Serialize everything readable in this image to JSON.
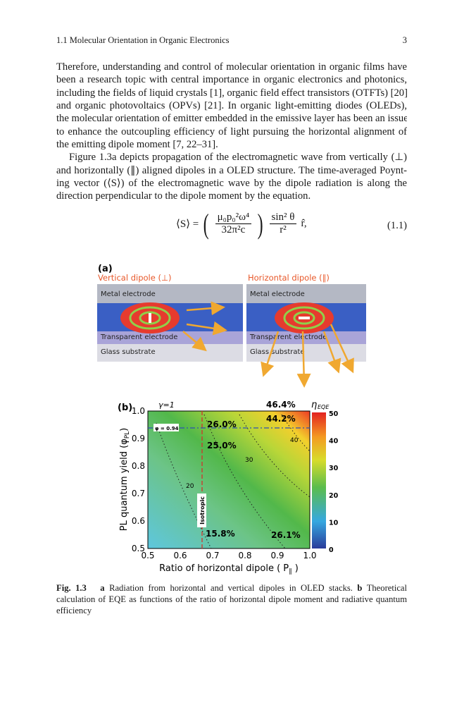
{
  "header": {
    "section": "1.1 Molecular Orientation in Organic Electronics",
    "page_number": "3"
  },
  "body": {
    "paragraphs": [
      {
        "lines": [
          "Therefore, understanding and control of molecular orientation in organic films have",
          "been a research topic with central importance in organic electronics and photonics,",
          "including the fields of liquid crystals [1], organic field effect transistors (OTFTs) [20],",
          "and organic photovoltaics (OPVs) [21]. In organic light-emitting diodes (OLEDs),",
          "the molecular orientation of emitter embedded in the emissive layer has been an issue",
          "to enhance the outcoupling efficiency of light pursuing the horizontal alignment of",
          "the emitting dipole moment [7, 22–31]."
        ]
      },
      {
        "lines": [
          "Figure 1.3a depicts propagation of the electromagnetic wave from vertically (⊥)",
          "and horizontally (∥) aligned dipoles in a OLED structure. The time-averaged Poynt-",
          "ing vector (⟨S⟩) of the electromagnetic wave by the dipole radiation is along the",
          "direction perpendicular to the dipole moment by the equation."
        ]
      }
    ]
  },
  "equation": {
    "lhs": "⟨S⟩ =",
    "numerator": "μ₀p₀²ω⁴",
    "denominator": "32π²c",
    "sin_num": "sin² θ",
    "sin_den": "r²",
    "unit": "r̂,",
    "number": "(1.1)"
  },
  "figure": {
    "panel_a": {
      "label": "(a)",
      "left_title": "Vertical dipole (⊥)",
      "right_title": "Horizontal dipole (∥)",
      "layers": [
        "Metal electrode",
        "Transparent electrode",
        "Glass substrate"
      ]
    },
    "panel_b": {
      "label": "(b)",
      "gamma": "γ=1",
      "colorbar_title": "η",
      "colorbar_sub": "EQE",
      "colorbar_ticks": [
        "50",
        "40",
        "30",
        "20",
        "10",
        "0"
      ],
      "yticks": [
        "1.0",
        "0.9",
        "0.8",
        "0.7",
        "0.6",
        "0.5"
      ],
      "xticks": [
        "0.5",
        "0.6",
        "0.7",
        "0.8",
        "0.9",
        "1.0"
      ],
      "ylabel": "PL quantum yield (φ",
      "ylabel_sub": "PL",
      "ylabel_end": ")",
      "xlabel": "Ratio of horizontal dipole ( P",
      "xlabel_sub": "∥",
      "xlabel_end": " )",
      "annotations": [
        "46.4%",
        "44.2%",
        "26.0%",
        "25.0%",
        "15.8%",
        "26.1%"
      ],
      "contour_labels": [
        "40",
        "30",
        "20"
      ],
      "phi_marker": "φ = 0.94",
      "isotropic": "Isotropic"
    }
  },
  "caption": {
    "label": "Fig. 1.3",
    "a": "a",
    "a_text": "Radiation from horizontal and vertical dipoles in OLED stacks.",
    "b": "b",
    "b_text": "Theoretical calculation of EQE as functions of the ratio of horizontal dipole moment and radiative quantum efficiency"
  }
}
